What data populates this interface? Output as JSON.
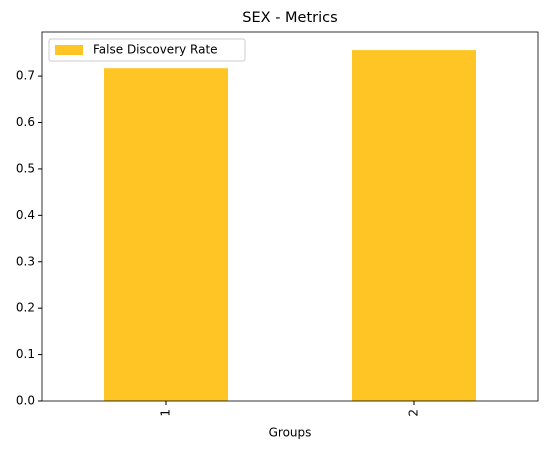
{
  "chart_data": {
    "type": "bar",
    "title": "SEX - Metrics",
    "xlabel": "Groups",
    "categories": [
      "1",
      "2"
    ],
    "series": [
      {
        "name": "False Discovery Rate",
        "color": "#fec524",
        "values": [
          0.717,
          0.756
        ]
      }
    ],
    "ylim": [
      0,
      0.795
    ],
    "yticks": [
      {
        "value": 0,
        "label": "0.0"
      },
      0.1,
      0.2,
      0.3,
      0.4,
      0.5,
      0.6,
      0.7
    ],
    "legend": "upper left",
    "grid": false
  }
}
